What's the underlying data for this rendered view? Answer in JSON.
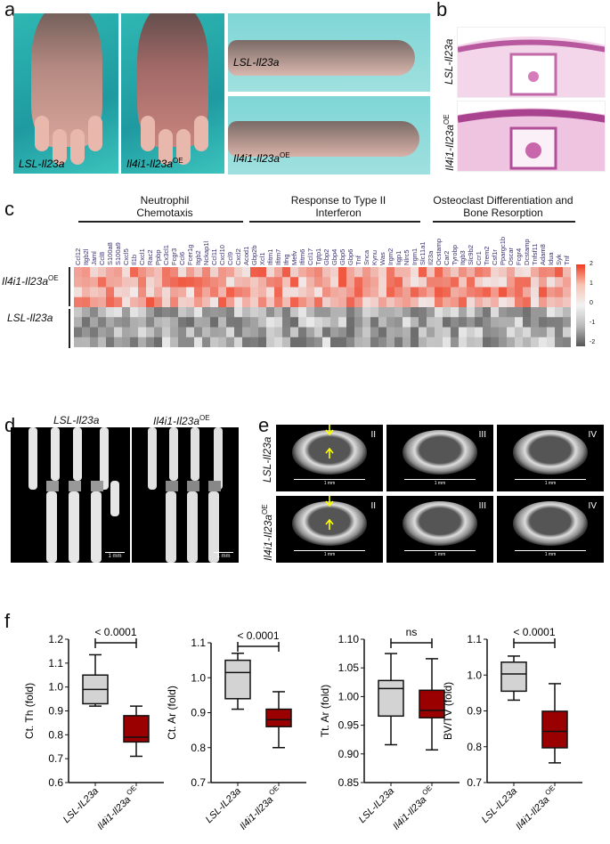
{
  "panels": {
    "a": "a",
    "b": "b",
    "c": "c",
    "d": "d",
    "e": "e",
    "f": "f"
  },
  "groups": {
    "lsl": "LSL-Il23a",
    "oe": "Il4i1-Il23a",
    "oe_sup": "OE"
  },
  "panel_c": {
    "headers": [
      "Neutrophil\nChemotaxis",
      "Response to Type II\nInterferon",
      "Osteoclast Differentiation and\nBone Resorption"
    ],
    "genes": [
      "Ccl12",
      "Itgb2l",
      "Jaml",
      "Ccl8",
      "S100a8",
      "S100a9",
      "Cxcl5",
      "Il1b",
      "Cxcl1",
      "Rac2",
      "Ppbp",
      "Cx3cl1",
      "Fcgr3",
      "Ccl6",
      "Fcer1g",
      "Itgb2",
      "Nckap1l",
      "Ccl11",
      "Cxcl10",
      "Ccl9",
      "Cxcl2",
      "Acod1",
      "Gbp2b",
      "Xcl1",
      "Ifitm1",
      "Ifitm7",
      "Ifng",
      "Mefv",
      "Ifitm6",
      "Ccl17",
      "Tgtp1",
      "Gbp2",
      "Gbp4",
      "Gbp5",
      "Gbp6",
      "Tnf",
      "Snca",
      "Kynu",
      "Was",
      "Irgm2",
      "Iigp1",
      "Nlrc5",
      "Irgm1",
      "Slc11a1",
      "Il23a",
      "Ocstamp",
      "Car2",
      "Tyrobp",
      "Itgb3",
      "Slc9b2",
      "Ccr1",
      "Trem2",
      "Csf1r",
      "Ppargc1b",
      "Oscar",
      "Fcgr4",
      "Dcstamp",
      "Tnfsf11",
      "Adam8",
      "Idua",
      "Syk",
      "Tnf"
    ],
    "group_sizes": [
      21,
      23,
      18
    ],
    "row_group_means": {
      "oe": 0.9,
      "lsl": -0.9
    },
    "rows_per_group": 4,
    "colorbar": {
      "ticks": [
        "2",
        "1",
        "0",
        "-1",
        "-2"
      ],
      "high": "#f03b20",
      "mid": "#f2f2f2",
      "low": "#555555"
    }
  },
  "panel_d": {
    "scale": "1 mm"
  },
  "panel_e": {
    "sections": [
      "II",
      "III",
      "IV"
    ],
    "scale": "1 mm"
  },
  "chart_data": [
    {
      "type": "box",
      "ylabel": "Ct. Th (fold)",
      "ylim": [
        0.6,
        1.2
      ],
      "ticks": [
        "0.6",
        "0.7",
        "0.8",
        "0.9",
        "1.0",
        "1.1",
        "1.2"
      ],
      "sig": "< 0.0001",
      "categories": [
        "LSL-IL23a",
        "Il4i1-Il23a OE"
      ],
      "boxes": [
        [
          0.92,
          0.93,
          0.99,
          1.05,
          1.135
        ],
        [
          0.71,
          0.77,
          0.79,
          0.88,
          0.92
        ]
      ]
    },
    {
      "type": "box",
      "ylabel": "Ct. Ar (fold)",
      "ylim": [
        0.7,
        1.1
      ],
      "ticks": [
        "0.7",
        "0.8",
        "0.9",
        "1.0",
        "1.1"
      ],
      "sig": "< 0.0001",
      "categories": [
        "LSL-IL23a",
        "Il4i1-Il23a OE"
      ],
      "boxes": [
        [
          0.91,
          0.94,
          1.015,
          1.05,
          1.07
        ],
        [
          0.8,
          0.86,
          0.88,
          0.91,
          0.96
        ]
      ]
    },
    {
      "type": "box",
      "ylabel": "Tt. Ar (fold)",
      "ylim": [
        0.85,
        1.1
      ],
      "ticks": [
        "0.85",
        "0.90",
        "0.95",
        "1.00",
        "1.05",
        "1.10"
      ],
      "sig": "ns",
      "categories": [
        "LSL-IL23a",
        "Il4i1-Il23a OE"
      ],
      "boxes": [
        [
          0.916,
          0.966,
          1.014,
          1.028,
          1.075
        ],
        [
          0.907,
          0.963,
          0.976,
          1.011,
          1.066
        ]
      ]
    },
    {
      "type": "box",
      "ylabel": "BV/TV (fold)",
      "ylim": [
        0.7,
        1.1
      ],
      "ticks": [
        "0.7",
        "0.8",
        "0.9",
        "1.0",
        "1.1"
      ],
      "sig": "< 0.0001",
      "categories": [
        "LSL-IL23a",
        "Il4i1-Il23a OE"
      ],
      "boxes": [
        [
          0.93,
          0.955,
          1.003,
          1.036,
          1.053
        ],
        [
          0.755,
          0.797,
          0.843,
          0.899,
          0.976
        ]
      ]
    }
  ],
  "colors": {
    "lsl_box": "#d3d3d3",
    "oe_box": "#9b0000"
  }
}
